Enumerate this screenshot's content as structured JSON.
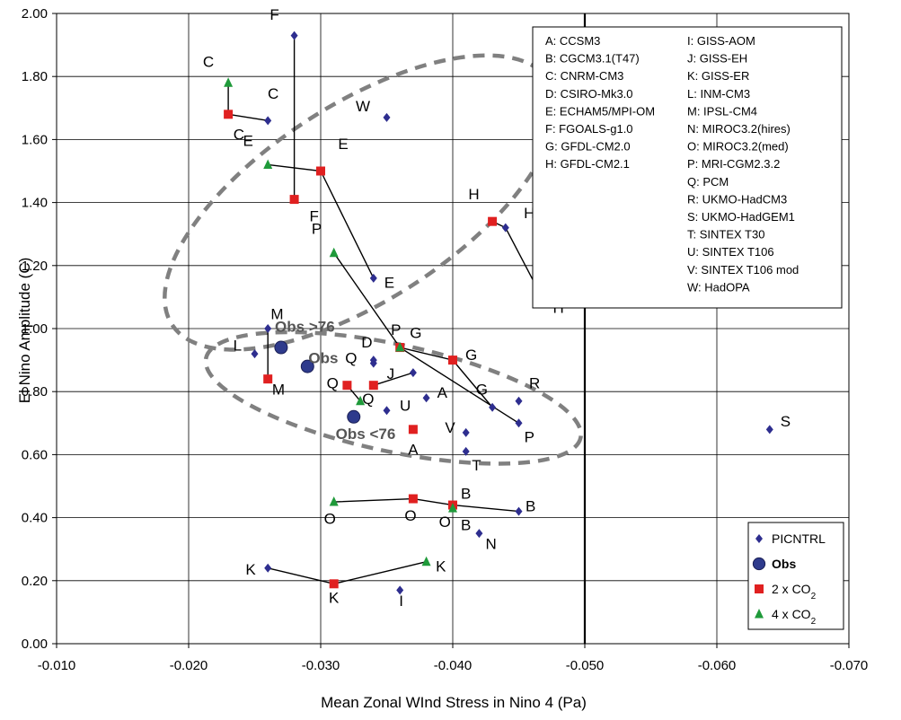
{
  "chart_data": {
    "type": "scatter",
    "xlabel": "Mean Zonal WInd Stress in Nino 4 (Pa)",
    "ylabel": "El Nino Amplitude (C)",
    "xlim": [
      -0.01,
      -0.07
    ],
    "ylim": [
      0.0,
      2.0
    ],
    "x_ticks": [
      "-0.010",
      "-0.020",
      "-0.030",
      "-0.040",
      "-0.050",
      "-0.060",
      "-0.070"
    ],
    "y_ticks": [
      "0.00",
      "0.20",
      "0.40",
      "0.60",
      "0.80",
      "1.00",
      "1.20",
      "1.40",
      "1.60",
      "1.80",
      "2.00"
    ],
    "grid": true,
    "reference_line_x": -0.05,
    "colors": {
      "PICNTRL": "#2e2e8f",
      "Obs": "#2e3a8c",
      "2xCO2": "#e02020",
      "4xCO2": "#1f9a3a",
      "lines": "#000000",
      "ellipses": "#808080"
    },
    "series": [
      {
        "name": "PICNTRL",
        "marker": "diamond",
        "points": [
          {
            "label": "F",
            "x": -0.028,
            "y": 1.93
          },
          {
            "label": "C",
            "x": -0.026,
            "y": 1.66
          },
          {
            "label": "W",
            "x": -0.035,
            "y": 1.67
          },
          {
            "label": "H",
            "x": -0.044,
            "y": 1.32
          },
          {
            "label": "E",
            "x": -0.034,
            "y": 1.16
          },
          {
            "label": "M",
            "x": -0.026,
            "y": 1.0
          },
          {
            "label": "L",
            "x": -0.025,
            "y": 0.92
          },
          {
            "label": "D",
            "x": -0.034,
            "y": 0.9
          },
          {
            "label": "Q",
            "x": -0.034,
            "y": 0.89
          },
          {
            "label": "J",
            "x": -0.037,
            "y": 0.86
          },
          {
            "label": "A",
            "x": -0.038,
            "y": 0.78
          },
          {
            "label": "R",
            "x": -0.045,
            "y": 0.77
          },
          {
            "label": "U",
            "x": -0.035,
            "y": 0.74
          },
          {
            "label": "G",
            "x": -0.043,
            "y": 0.75
          },
          {
            "label": "P",
            "x": -0.045,
            "y": 0.7
          },
          {
            "label": "V",
            "x": -0.041,
            "y": 0.67
          },
          {
            "label": "T",
            "x": -0.041,
            "y": 0.61
          },
          {
            "label": "S",
            "x": -0.064,
            "y": 0.68
          },
          {
            "label": "B",
            "x": -0.045,
            "y": 0.42
          },
          {
            "label": "N",
            "x": -0.042,
            "y": 0.35
          },
          {
            "label": "K",
            "x": -0.026,
            "y": 0.24
          },
          {
            "label": "I",
            "x": -0.036,
            "y": 0.17
          }
        ]
      },
      {
        "name": "Obs",
        "marker": "circle",
        "points": [
          {
            "label": "Obs >76",
            "x": -0.027,
            "y": 0.94
          },
          {
            "label": "Obs",
            "x": -0.029,
            "y": 0.88
          },
          {
            "label": "Obs <76",
            "x": -0.0325,
            "y": 0.72
          }
        ]
      },
      {
        "name": "2 x CO2",
        "marker": "square",
        "points": [
          {
            "label": "C",
            "x": -0.023,
            "y": 1.68
          },
          {
            "label": "E",
            "x": -0.03,
            "y": 1.5
          },
          {
            "label": "F",
            "x": -0.028,
            "y": 1.41
          },
          {
            "label": "H",
            "x": -0.043,
            "y": 1.34
          },
          {
            "label": "P",
            "x": -0.036,
            "y": 0.94
          },
          {
            "label": "G",
            "x": -0.04,
            "y": 0.9
          },
          {
            "label": "M",
            "x": -0.026,
            "y": 0.84
          },
          {
            "label": "Q",
            "x": -0.032,
            "y": 0.82
          },
          {
            "label": "J",
            "x": -0.034,
            "y": 0.82
          },
          {
            "label": "A",
            "x": -0.037,
            "y": 0.68
          },
          {
            "label": "O",
            "x": -0.037,
            "y": 0.46
          },
          {
            "label": "B",
            "x": -0.04,
            "y": 0.44
          },
          {
            "label": "K",
            "x": -0.031,
            "y": 0.19
          }
        ]
      },
      {
        "name": "4 x CO2",
        "marker": "triangle",
        "points": [
          {
            "label": "C",
            "x": -0.023,
            "y": 1.78
          },
          {
            "label": "E",
            "x": -0.026,
            "y": 1.52
          },
          {
            "label": "P",
            "x": -0.031,
            "y": 1.24
          },
          {
            "label": "H",
            "x": -0.047,
            "y": 1.08
          },
          {
            "label": "G",
            "x": -0.036,
            "y": 0.94
          },
          {
            "label": "Q",
            "x": -0.033,
            "y": 0.77
          },
          {
            "label": "O",
            "x": -0.031,
            "y": 0.45
          },
          {
            "label": "B",
            "x": -0.04,
            "y": 0.43
          },
          {
            "label": "K",
            "x": -0.038,
            "y": 0.26
          }
        ]
      }
    ],
    "connections": [
      {
        "points": [
          [
            -0.023,
            1.78
          ],
          [
            -0.023,
            1.68
          ],
          [
            -0.026,
            1.66
          ]
        ]
      },
      {
        "points": [
          [
            -0.028,
            1.93
          ],
          [
            -0.028,
            1.41
          ]
        ]
      },
      {
        "points": [
          [
            -0.026,
            1.52
          ],
          [
            -0.03,
            1.5
          ],
          [
            -0.034,
            1.16
          ]
        ]
      },
      {
        "points": [
          [
            -0.043,
            1.34
          ],
          [
            -0.044,
            1.32
          ],
          [
            -0.047,
            1.08
          ]
        ]
      },
      {
        "points": [
          [
            -0.031,
            1.24
          ],
          [
            -0.036,
            0.94
          ],
          [
            -0.045,
            0.7
          ]
        ]
      },
      {
        "points": [
          [
            -0.036,
            0.94
          ],
          [
            -0.04,
            0.9
          ],
          [
            -0.043,
            0.75
          ]
        ]
      },
      {
        "points": [
          [
            -0.026,
            1.0
          ],
          [
            -0.026,
            0.84
          ]
        ]
      },
      {
        "points": [
          [
            -0.032,
            0.82
          ],
          [
            -0.033,
            0.77
          ]
        ]
      },
      {
        "points": [
          [
            -0.034,
            0.82
          ],
          [
            -0.037,
            0.86
          ]
        ]
      },
      {
        "points": [
          [
            -0.031,
            0.45
          ],
          [
            -0.037,
            0.46
          ],
          [
            -0.04,
            0.44
          ],
          [
            -0.045,
            0.42
          ]
        ]
      },
      {
        "points": [
          [
            -0.026,
            0.24
          ],
          [
            -0.031,
            0.19
          ],
          [
            -0.038,
            0.26
          ]
        ]
      }
    ],
    "annotations": [
      {
        "text": "F",
        "x": -0.0265,
        "y": 1.98
      },
      {
        "text": "C",
        "x": -0.0215,
        "y": 1.83
      },
      {
        "text": "C",
        "x": -0.0264,
        "y": 1.73
      },
      {
        "text": "C",
        "x": -0.0238,
        "y": 1.6
      },
      {
        "text": "W",
        "x": -0.0332,
        "y": 1.69
      },
      {
        "text": "E",
        "x": -0.0245,
        "y": 1.58
      },
      {
        "text": "E",
        "x": -0.0317,
        "y": 1.57
      },
      {
        "text": "F",
        "x": -0.0295,
        "y": 1.34
      },
      {
        "text": "H",
        "x": -0.0416,
        "y": 1.41
      },
      {
        "text": "H",
        "x": -0.0458,
        "y": 1.35
      },
      {
        "text": "P",
        "x": -0.0297,
        "y": 1.3
      },
      {
        "text": "E",
        "x": -0.0352,
        "y": 1.13
      },
      {
        "text": "H",
        "x": -0.048,
        "y": 1.05
      },
      {
        "text": "M",
        "x": -0.0267,
        "y": 1.03
      },
      {
        "text": "L",
        "x": -0.0237,
        "y": 0.93
      },
      {
        "text": "P",
        "x": -0.0357,
        "y": 0.98
      },
      {
        "text": "G",
        "x": -0.0372,
        "y": 0.97
      },
      {
        "text": "D",
        "x": -0.0335,
        "y": 0.94
      },
      {
        "text": "Q",
        "x": -0.0323,
        "y": 0.89
      },
      {
        "text": "J",
        "x": -0.0353,
        "y": 0.84
      },
      {
        "text": "Q",
        "x": -0.0309,
        "y": 0.81
      },
      {
        "text": "G",
        "x": -0.0414,
        "y": 0.9
      },
      {
        "text": "A",
        "x": -0.0392,
        "y": 0.78
      },
      {
        "text": "Q",
        "x": -0.0336,
        "y": 0.76
      },
      {
        "text": "U",
        "x": -0.0364,
        "y": 0.74
      },
      {
        "text": "G",
        "x": -0.0422,
        "y": 0.79
      },
      {
        "text": "R",
        "x": -0.0462,
        "y": 0.81
      },
      {
        "text": "V",
        "x": -0.0398,
        "y": 0.67
      },
      {
        "text": "P",
        "x": -0.0458,
        "y": 0.64
      },
      {
        "text": "A",
        "x": -0.037,
        "y": 0.6
      },
      {
        "text": "T",
        "x": -0.0418,
        "y": 0.55
      },
      {
        "text": "S",
        "x": -0.0652,
        "y": 0.69
      },
      {
        "text": "M",
        "x": -0.0268,
        "y": 0.79
      },
      {
        "text": "Obs >76",
        "x": -0.0288,
        "y": 0.99
      },
      {
        "text": "Obs",
        "x": -0.0302,
        "y": 0.89
      },
      {
        "text": "Obs <76",
        "x": -0.0334,
        "y": 0.65
      },
      {
        "text": "B",
        "x": -0.041,
        "y": 0.46
      },
      {
        "text": "B",
        "x": -0.0459,
        "y": 0.42
      },
      {
        "text": "O",
        "x": -0.0307,
        "y": 0.38
      },
      {
        "text": "O",
        "x": -0.0368,
        "y": 0.39
      },
      {
        "text": "O",
        "x": -0.0394,
        "y": 0.37
      },
      {
        "text": "B",
        "x": -0.041,
        "y": 0.36
      },
      {
        "text": "N",
        "x": -0.0429,
        "y": 0.3
      },
      {
        "text": "K",
        "x": -0.0247,
        "y": 0.22
      },
      {
        "text": "K",
        "x": -0.031,
        "y": 0.13
      },
      {
        "text": "K",
        "x": -0.0391,
        "y": 0.23
      },
      {
        "text": "I",
        "x": -0.0361,
        "y": 0.12
      }
    ],
    "ellipses": [
      {
        "cx": -0.033,
        "cy": 1.4,
        "rx": 0.017,
        "ry": 0.31,
        "angle": -33
      },
      {
        "cx": -0.0355,
        "cy": 0.78,
        "rx": 0.0145,
        "ry": 0.17,
        "angle": 12
      }
    ],
    "model_key": {
      "columns": [
        [
          "A: CCSM3",
          "B: CGCM3.1(T47)",
          "C: CNRM-CM3",
          "D: CSIRO-Mk3.0",
          "E: ECHAM5/MPI-OM",
          "F: FGOALS-g1.0",
          "G: GFDL-CM2.0",
          "H: GFDL-CM2.1"
        ],
        [
          "I: GISS-AOM",
          "J: GISS-EH",
          "K: GISS-ER",
          "L: INM-CM3",
          "M: IPSL-CM4",
          "N: MIROC3.2(hires)",
          "O: MIROC3.2(med)",
          "P: MRI-CGM2.3.2",
          "Q: PCM",
          "R: UKMO-HadCM3",
          "S: UKMO-HadGEM1",
          "T: SINTEX T30",
          "U: SINTEX T106",
          "V: SINTEX T106 mod",
          "W: HadOPA"
        ]
      ]
    },
    "legend": {
      "placement": "bottom-right",
      "entries": [
        {
          "marker": "diamond",
          "label": "PICNTRL",
          "sub": ""
        },
        {
          "marker": "circle",
          "label": "Obs",
          "sub": "",
          "bold": true
        },
        {
          "marker": "square",
          "label": "2 x CO",
          "sub": "2"
        },
        {
          "marker": "triangle",
          "label": "4 x CO",
          "sub": "2"
        }
      ]
    }
  }
}
